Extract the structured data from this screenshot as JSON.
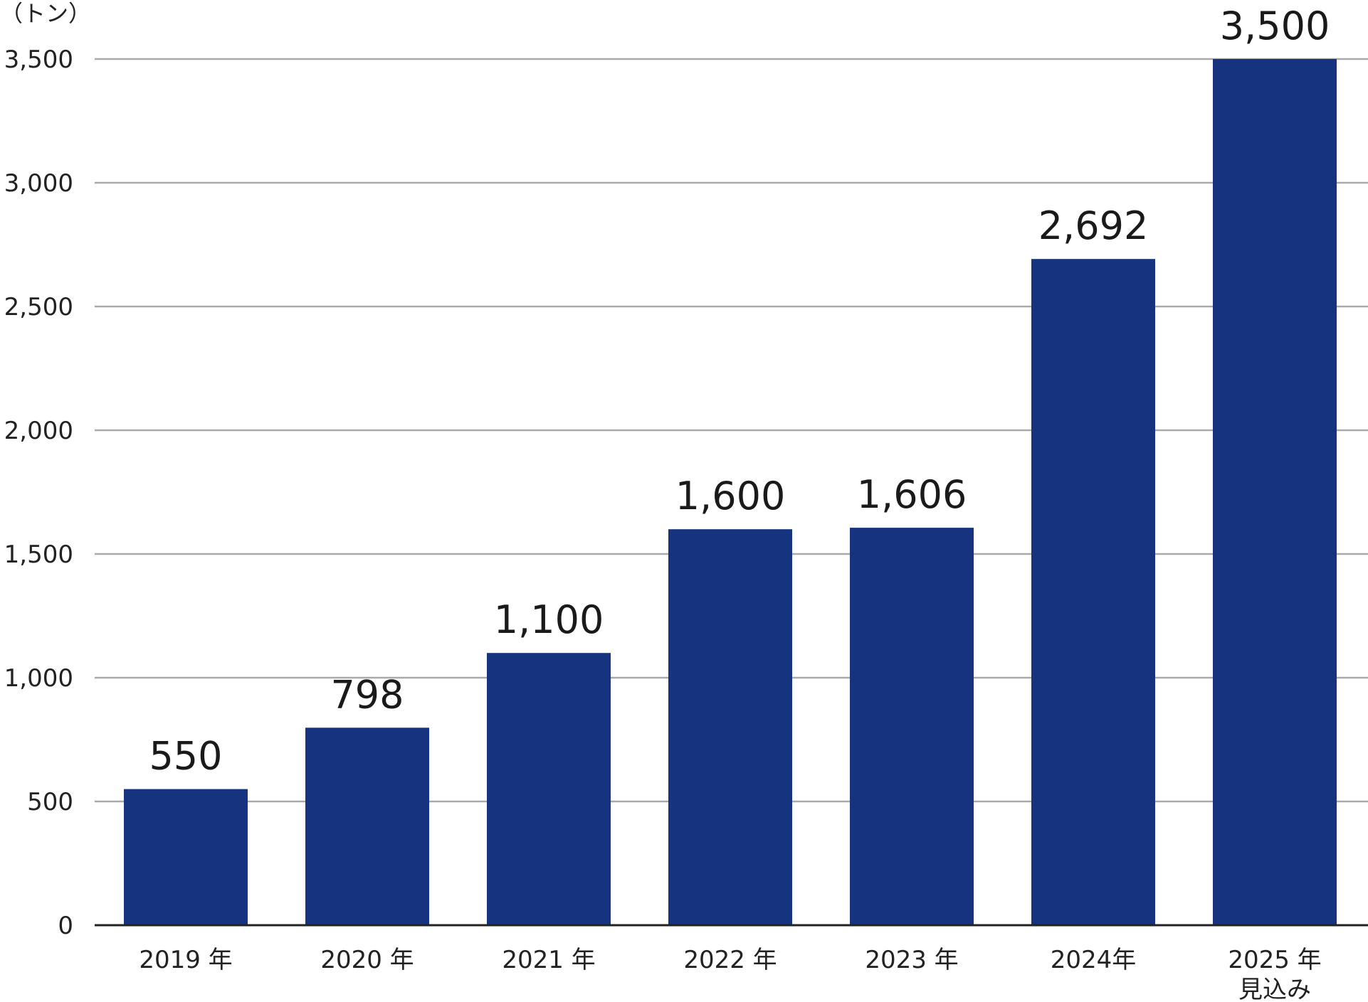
{
  "chart_data": {
    "type": "bar",
    "ylabel": "（トン）",
    "ylim": [
      0,
      3500
    ],
    "yticks": [
      "0",
      "500",
      "1,000",
      "1,500",
      "2,000",
      "2,500",
      "3,000",
      "3,500"
    ],
    "ytick_values": [
      0,
      500,
      1000,
      1500,
      2000,
      2500,
      3000,
      3500
    ],
    "grid": true,
    "bar_color": "#15337f",
    "categories": [
      [
        "2019 年"
      ],
      [
        "2020 年"
      ],
      [
        "2021 年"
      ],
      [
        "2022 年"
      ],
      [
        "2023 年"
      ],
      [
        "2024年"
      ],
      [
        "2025 年",
        "見込み"
      ]
    ],
    "values": [
      550,
      798,
      1100,
      1600,
      1606,
      2692,
      3500
    ],
    "value_labels": [
      "550",
      "798",
      "1,100",
      "1,600",
      "1,606",
      "2,692",
      "3,500"
    ]
  }
}
